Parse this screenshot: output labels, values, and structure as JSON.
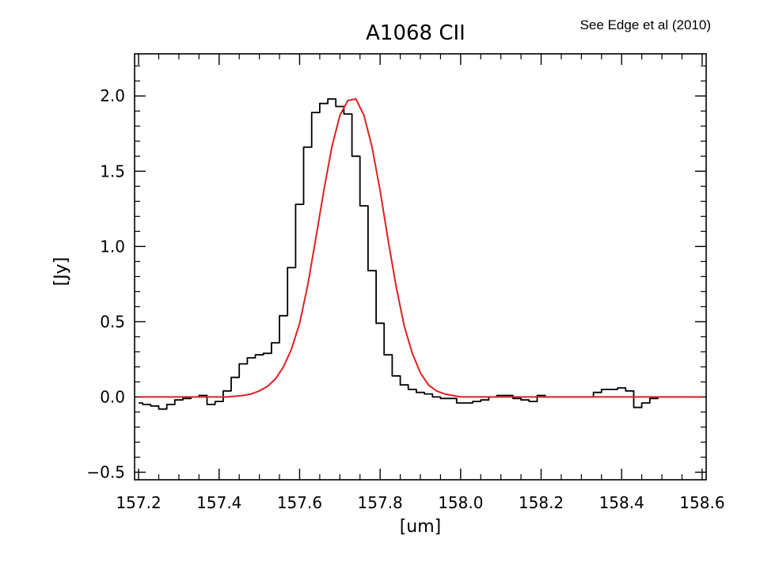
{
  "note": "See Edge et al (2010)",
  "chart_data": {
    "type": "line",
    "title": "A1068  CII",
    "xlabel": "[um]",
    "ylabel": "[Jy]",
    "xlim": [
      157.2,
      158.6
    ],
    "ylim": [
      -0.5,
      2.3
    ],
    "xticks": [
      157.2,
      157.4,
      157.6,
      157.8,
      158.0,
      158.2,
      158.4,
      158.6
    ],
    "xtick_labels": [
      "157.2",
      "157.4",
      "157.6",
      "157.8",
      "158.0",
      "158.2",
      "158.4",
      "158.6"
    ],
    "yticks": [
      -0.5,
      0.0,
      0.5,
      1.0,
      1.5,
      2.0
    ],
    "ytick_labels": [
      "−0.5",
      "0.0",
      "0.5",
      "1.0",
      "1.5",
      "2.0"
    ],
    "grid": false,
    "series": [
      {
        "style": "steps-mid",
        "color": "#000000",
        "x": [
          157.2,
          157.22,
          157.24,
          157.26,
          157.28,
          157.3,
          157.32,
          157.34,
          157.36,
          157.38,
          157.4,
          157.42,
          157.44,
          157.46,
          157.48,
          157.5,
          157.52,
          157.54,
          157.56,
          157.58,
          157.6,
          157.62,
          157.64,
          157.66,
          157.68,
          157.7,
          157.72,
          157.74,
          157.76,
          157.78,
          157.8,
          157.82,
          157.84,
          157.86,
          157.88,
          157.9,
          157.92,
          157.94,
          157.96,
          157.98,
          158.0,
          158.02,
          158.04,
          158.06,
          158.08,
          158.1,
          158.12,
          158.14,
          158.16,
          158.18,
          158.2,
          158.22,
          158.24,
          158.26,
          158.28,
          158.3,
          158.32,
          158.34,
          158.36,
          158.38,
          158.4,
          158.42,
          158.44,
          158.46,
          158.48,
          158.5,
          158.52,
          158.54,
          158.56,
          158.58,
          158.6
        ],
        "y": [
          -0.04,
          -0.05,
          -0.06,
          -0.08,
          -0.05,
          -0.02,
          -0.01,
          0.0,
          0.01,
          -0.05,
          -0.03,
          0.04,
          0.13,
          0.22,
          0.26,
          0.28,
          0.29,
          0.36,
          0.54,
          0.86,
          1.28,
          1.66,
          1.89,
          1.95,
          1.98,
          1.93,
          1.88,
          1.6,
          1.27,
          0.84,
          0.49,
          0.28,
          0.14,
          0.08,
          0.05,
          0.03,
          0.02,
          0.0,
          -0.01,
          -0.01,
          -0.04,
          -0.04,
          -0.03,
          -0.02,
          0.0,
          0.01,
          0.01,
          -0.01,
          -0.02,
          -0.03,
          0.01,
          0.0,
          0.0,
          0.0,
          0.0,
          0.0,
          0.0,
          0.03,
          0.05,
          0.05,
          0.06,
          0.04,
          -0.07,
          -0.04,
          -0.01,
          0.0,
          0.0,
          0.0,
          0.0,
          0.0,
          0.0
        ]
      },
      {
        "style": "line",
        "color": "#e02020",
        "x": [
          157.2,
          157.25,
          157.3,
          157.35,
          157.4,
          157.42,
          157.44,
          157.46,
          157.48,
          157.5,
          157.52,
          157.54,
          157.56,
          157.58,
          157.6,
          157.62,
          157.64,
          157.66,
          157.68,
          157.7,
          157.72,
          157.74,
          157.76,
          157.78,
          157.8,
          157.82,
          157.84,
          157.86,
          157.88,
          157.9,
          157.92,
          157.94,
          157.96,
          157.98,
          158.0,
          158.02,
          158.05,
          158.1,
          158.2,
          158.3,
          158.4,
          158.5,
          158.6
        ],
        "y": [
          0.0,
          0.0,
          0.0,
          0.0,
          0.0,
          0.0,
          0.005,
          0.01,
          0.02,
          0.04,
          0.07,
          0.12,
          0.2,
          0.32,
          0.49,
          0.74,
          1.05,
          1.37,
          1.66,
          1.87,
          1.97,
          1.98,
          1.87,
          1.66,
          1.37,
          1.04,
          0.73,
          0.47,
          0.29,
          0.16,
          0.08,
          0.04,
          0.02,
          0.01,
          0.0,
          0.0,
          0.0,
          0.0,
          0.0,
          0.0,
          0.0,
          0.0,
          0.0
        ]
      }
    ]
  }
}
